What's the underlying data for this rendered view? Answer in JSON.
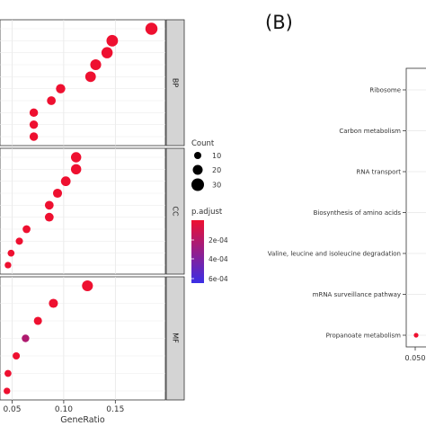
{
  "panel_b_label": "(B)",
  "chart_data": [
    {
      "type": "scatter",
      "xlabel": "GeneRatio",
      "x_ticks": [
        "0.05",
        "0.10",
        "0.15"
      ],
      "xlim": [
        0.04,
        0.195
      ],
      "facets": [
        {
          "name": "BP",
          "points": [
            {
              "x": 0.185,
              "count": 30,
              "p_adjust": 1e-05
            },
            {
              "x": 0.147,
              "count": 28,
              "p_adjust": 1e-05
            },
            {
              "x": 0.142,
              "count": 27,
              "p_adjust": 1e-05
            },
            {
              "x": 0.131,
              "count": 26,
              "p_adjust": 1e-05
            },
            {
              "x": 0.126,
              "count": 25,
              "p_adjust": 1e-05
            },
            {
              "x": 0.097,
              "count": 21,
              "p_adjust": 1e-05
            },
            {
              "x": 0.088,
              "count": 19,
              "p_adjust": 1e-05
            },
            {
              "x": 0.071,
              "count": 18,
              "p_adjust": 1e-05
            },
            {
              "x": 0.071,
              "count": 18,
              "p_adjust": 1e-05
            },
            {
              "x": 0.071,
              "count": 18,
              "p_adjust": 1e-05
            }
          ]
        },
        {
          "name": "CC",
          "points": [
            {
              "x": 0.112,
              "count": 24,
              "p_adjust": 1e-05
            },
            {
              "x": 0.112,
              "count": 24,
              "p_adjust": 1e-05
            },
            {
              "x": 0.102,
              "count": 22,
              "p_adjust": 1e-05
            },
            {
              "x": 0.094,
              "count": 20,
              "p_adjust": 1e-05
            },
            {
              "x": 0.086,
              "count": 19,
              "p_adjust": 1e-05
            },
            {
              "x": 0.086,
              "count": 19,
              "p_adjust": 1e-05
            },
            {
              "x": 0.064,
              "count": 16,
              "p_adjust": 1e-05
            },
            {
              "x": 0.057,
              "count": 14,
              "p_adjust": 1e-05
            },
            {
              "x": 0.049,
              "count": 13,
              "p_adjust": 1e-05
            },
            {
              "x": 0.046,
              "count": 12,
              "p_adjust": 1e-05
            }
          ]
        },
        {
          "name": "MF",
          "points": [
            {
              "x": 0.123,
              "count": 26,
              "p_adjust": 1e-05
            },
            {
              "x": 0.09,
              "count": 20,
              "p_adjust": 1e-05
            },
            {
              "x": 0.075,
              "count": 17,
              "p_adjust": 1e-05
            },
            {
              "x": 0.063,
              "count": 15,
              "p_adjust": 0.00025
            },
            {
              "x": 0.054,
              "count": 14,
              "p_adjust": 1e-05
            },
            {
              "x": 0.046,
              "count": 13,
              "p_adjust": 1e-05
            },
            {
              "x": 0.045,
              "count": 12,
              "p_adjust": 1e-05
            }
          ]
        }
      ],
      "legend": {
        "size_title": "Count",
        "size_values": [
          10,
          20,
          30
        ],
        "color_title": "p.adjust",
        "color_ticks": [
          "2e-04",
          "4e-04",
          "6e-04"
        ],
        "color_low": "#ee1030",
        "color_high": "#3a2ee6"
      },
      "grid": true
    },
    {
      "type": "scatter",
      "categories": [
        "Ribosome",
        "Carbon metabolism",
        "RNA transport",
        "Biosynthesis of amino acids",
        "Valine, leucine and isoleucine degradation",
        "mRNA surveillance pathway",
        "Propanoate metabolism"
      ],
      "x_ticks": [
        "0.050"
      ],
      "points": [
        {
          "category": "Propanoate metabolism",
          "x": 0.05,
          "count": 6,
          "p_adjust": 1e-05
        }
      ],
      "grid": true
    }
  ]
}
